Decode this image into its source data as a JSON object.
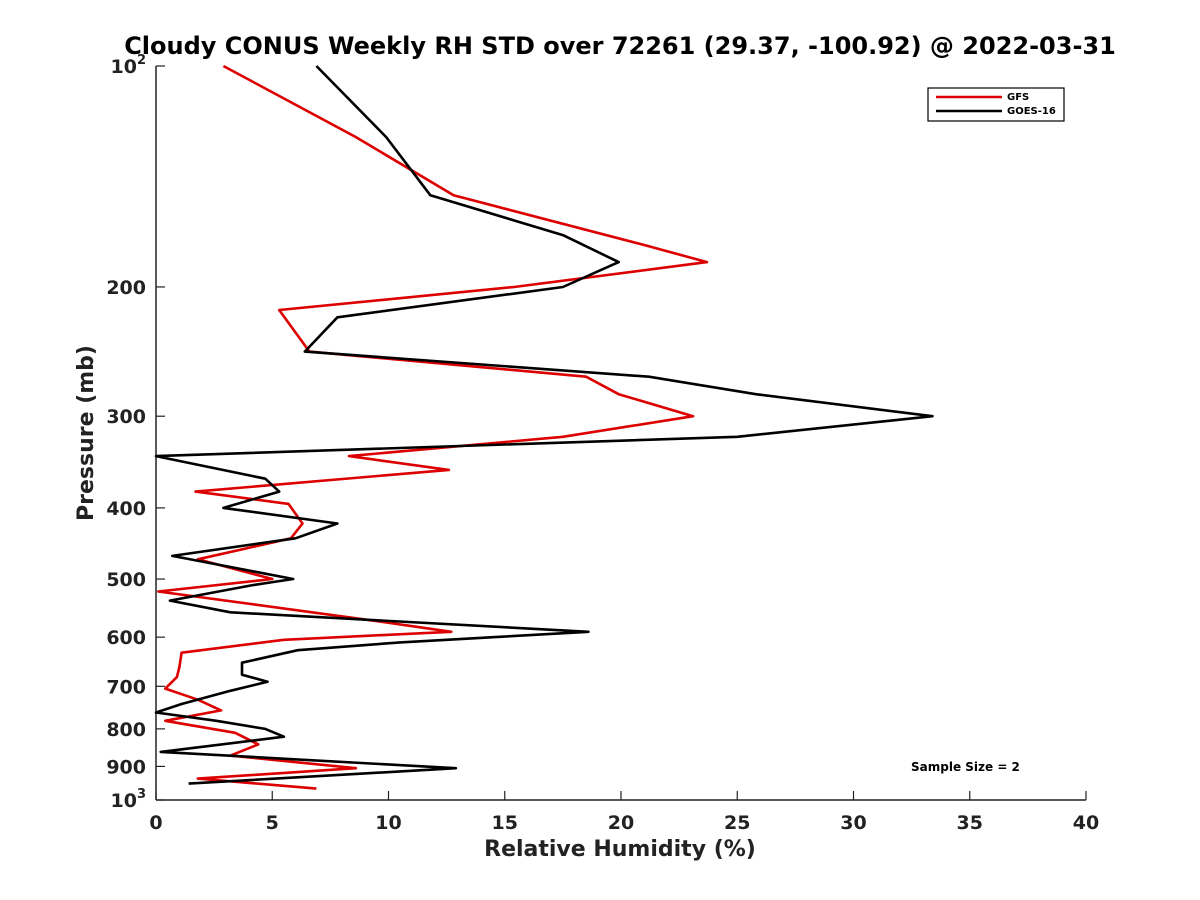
{
  "chart_data": {
    "type": "line",
    "title": "Cloudy CONUS Weekly RH STD over 72261 (29.37, -100.92) @ 2022-03-31",
    "xlabel": "Relative Humidity (%)",
    "ylabel": "Pressure (mb)",
    "xlim": [
      0,
      40
    ],
    "ylim": [
      1000,
      100
    ],
    "y_scale": "log",
    "y_reversed": true,
    "x_ticks": [
      0,
      5,
      10,
      15,
      20,
      25,
      30,
      35,
      40
    ],
    "x_tick_labels": [
      "0",
      "5",
      "10",
      "15",
      "20",
      "25",
      "30",
      "35",
      "40"
    ],
    "y_ticks": [
      100,
      200,
      300,
      400,
      500,
      600,
      700,
      800,
      900,
      1000
    ],
    "y_tick_labels": [
      {
        "base": "10",
        "sup": "2"
      },
      {
        "base": "200"
      },
      {
        "base": "300"
      },
      {
        "base": "400"
      },
      {
        "base": "500"
      },
      {
        "base": "600"
      },
      {
        "base": "700"
      },
      {
        "base": "800"
      },
      {
        "base": "900"
      },
      {
        "base": "10",
        "sup": "3"
      }
    ],
    "grid": false,
    "legend_position": "top-right",
    "annotation": "Sample Size = 2",
    "series": [
      {
        "name": "GFS",
        "color": "#dd0000",
        "points": [
          [
            2.9,
            100
          ],
          [
            8.6,
            125
          ],
          [
            12.8,
            150
          ],
          [
            20.9,
            175
          ],
          [
            23.7,
            185
          ],
          [
            15.4,
            200
          ],
          [
            5.3,
            215
          ],
          [
            6.6,
            245
          ],
          [
            18.5,
            265
          ],
          [
            19.9,
            280
          ],
          [
            23.1,
            300
          ],
          [
            17.5,
            320
          ],
          [
            8.3,
            340
          ],
          [
            12.6,
            355
          ],
          [
            1.7,
            380
          ],
          [
            5.7,
            395
          ],
          [
            6.3,
            420
          ],
          [
            5.8,
            440
          ],
          [
            1.8,
            470
          ],
          [
            5.0,
            500
          ],
          [
            0.1,
            520
          ],
          [
            9.4,
            570
          ],
          [
            12.7,
            590
          ],
          [
            5.5,
            605
          ],
          [
            1.1,
            630
          ],
          [
            1.0,
            660
          ],
          [
            0.9,
            680
          ],
          [
            0.4,
            705
          ],
          [
            1.8,
            730
          ],
          [
            2.8,
            755
          ],
          [
            0.4,
            780
          ],
          [
            3.4,
            810
          ],
          [
            4.4,
            840
          ],
          [
            3.2,
            870
          ],
          [
            8.6,
            905
          ],
          [
            1.8,
            935
          ],
          [
            6.9,
            965
          ]
        ]
      },
      {
        "name": "GOES-16",
        "color": "#000000",
        "points": [
          [
            6.9,
            100
          ],
          [
            9.9,
            125
          ],
          [
            11.8,
            150
          ],
          [
            17.5,
            170
          ],
          [
            19.9,
            185
          ],
          [
            17.5,
            200
          ],
          [
            7.8,
            220
          ],
          [
            6.4,
            245
          ],
          [
            21.2,
            265
          ],
          [
            25.8,
            280
          ],
          [
            33.4,
            300
          ],
          [
            25.0,
            320
          ],
          [
            0.0,
            340
          ],
          [
            4.7,
            365
          ],
          [
            5.3,
            380
          ],
          [
            2.9,
            400
          ],
          [
            7.8,
            420
          ],
          [
            6.0,
            440
          ],
          [
            0.7,
            465
          ],
          [
            5.9,
            500
          ],
          [
            4.1,
            510
          ],
          [
            0.6,
            535
          ],
          [
            3.2,
            555
          ],
          [
            18.6,
            590
          ],
          [
            10.5,
            610
          ],
          [
            6.1,
            625
          ],
          [
            3.7,
            650
          ],
          [
            3.7,
            675
          ],
          [
            4.8,
            690
          ],
          [
            3.2,
            710
          ],
          [
            1.1,
            740
          ],
          [
            0.0,
            760
          ],
          [
            2.6,
            780
          ],
          [
            4.7,
            800
          ],
          [
            5.5,
            820
          ],
          [
            0.2,
            860
          ],
          [
            12.9,
            905
          ],
          [
            1.4,
            950
          ]
        ]
      }
    ]
  }
}
